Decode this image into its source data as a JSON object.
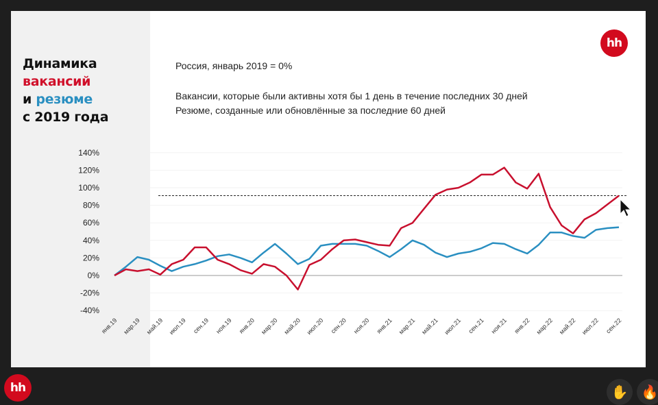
{
  "slide": {
    "title_line1": "Динамика",
    "title_line2": "вакансий",
    "title_line3_a": "и ",
    "title_line3_b": "резюме",
    "title_line4": "с 2019 года",
    "subtitle": "Россия, январь 2019 = 0%",
    "desc_line1": "Вакансии, которые были активны хотя бы 1 день в течение последних 30 дней",
    "desc_line2": "Резюме, созданные или обновлённые за последние 60 дней",
    "logo_text": "hh"
  },
  "footer": {
    "logo_text": "hh",
    "hand_icon": "✋",
    "fire_icon": "🔥"
  },
  "colors": {
    "vacancies": "#c8102e",
    "resumes": "#2a8fc1",
    "brand": "#d20a1e"
  },
  "chart_data": {
    "type": "line",
    "title": "Динамика вакансий и резюме с 2019 года",
    "subtitle": "Россия, январь 2019 = 0%",
    "xlabel": "",
    "ylabel": "",
    "ylim": [
      -40,
      140
    ],
    "yticks": [
      "140%",
      "120%",
      "100%",
      "80%",
      "60%",
      "40%",
      "20%",
      "0%",
      "-20%",
      "-40%"
    ],
    "ytick_values": [
      140,
      120,
      100,
      80,
      60,
      40,
      20,
      0,
      -20,
      -40
    ],
    "x": [
      "янв.19",
      "фев.19",
      "мар.19",
      "апр.19",
      "май.19",
      "июн.19",
      "июл.19",
      "авг.19",
      "сен.19",
      "окт.19",
      "ноя.19",
      "дек.19",
      "янв.20",
      "фев.20",
      "мар.20",
      "апр.20",
      "май.20",
      "июн.20",
      "июл.20",
      "авг.20",
      "сен.20",
      "окт.20",
      "ноя.20",
      "дек.20",
      "янв.21",
      "фев.21",
      "мар.21",
      "апр.21",
      "май.21",
      "июн.21",
      "июл.21",
      "авг.21",
      "сен.21",
      "окт.21",
      "ноя.21",
      "дек.21",
      "янв.22",
      "фев.22",
      "мар.22",
      "апр.22",
      "май.22",
      "июн.22",
      "июл.22",
      "авг.22",
      "сен.22"
    ],
    "xtick_labels": [
      "янв.19",
      "мар.19",
      "май.19",
      "июл.19",
      "сен.19",
      "ноя.19",
      "янв.20",
      "мар.20",
      "май.20",
      "июл.20",
      "сен.20",
      "ноя.20",
      "янв.21",
      "мар.21",
      "май.21",
      "июл.21",
      "сен.21",
      "ноя.21",
      "янв.22",
      "мар.22",
      "май.22",
      "июл.22",
      "сен.22"
    ],
    "series": [
      {
        "name": "Вакансии",
        "values": [
          0,
          7,
          5,
          7,
          1,
          13,
          18,
          32,
          32,
          18,
          13,
          6,
          2,
          13,
          10,
          0,
          -16,
          12,
          18,
          30,
          40,
          41,
          38,
          35,
          34,
          54,
          60,
          76,
          92,
          98,
          100,
          106,
          115,
          115,
          123,
          106,
          99,
          116,
          78,
          57,
          48,
          64,
          71,
          81,
          91
        ]
      },
      {
        "name": "Резюме",
        "values": [
          0,
          10,
          21,
          18,
          11,
          5,
          10,
          13,
          17,
          22,
          24,
          20,
          15,
          26,
          36,
          25,
          13,
          19,
          34,
          36,
          36,
          36,
          34,
          28,
          21,
          30,
          40,
          35,
          26,
          21,
          25,
          27,
          31,
          37,
          36,
          30,
          25,
          35,
          49,
          49,
          45,
          43,
          52,
          54,
          55
        ]
      }
    ],
    "reference_line": {
      "value": 91,
      "style": "dashed"
    },
    "grid": true,
    "legend": "none"
  }
}
